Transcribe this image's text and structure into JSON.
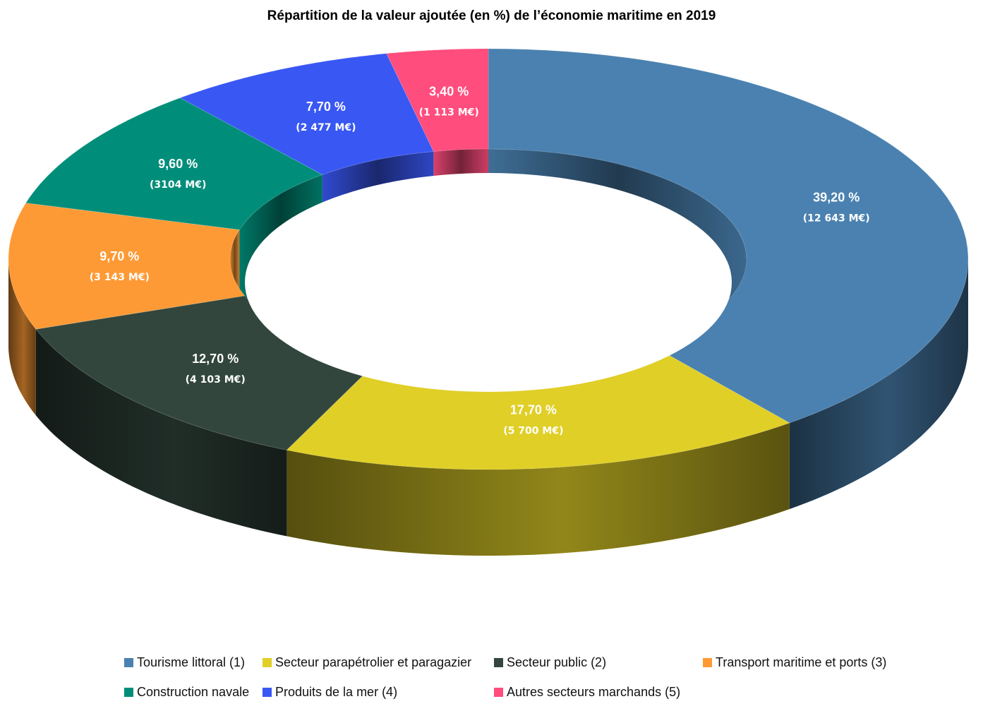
{
  "chart_data": {
    "type": "pie",
    "style": "donut-3d",
    "title": "Répartition de la valeur ajoutée (en %) de l’économie maritime en 2019",
    "legend_position": "bottom",
    "slices": [
      {
        "name": "Tourisme littoral (1)",
        "value": 39.2,
        "label": "39,20 %",
        "amount": "(12 643 M€)",
        "color": "#4A81B0"
      },
      {
        "name": "Secteur parapétrolier et paragazier",
        "value": 17.7,
        "label": "17,70 %",
        "amount": "(5 700 M€)",
        "color": "#E0CF27"
      },
      {
        "name": "Secteur public (2)",
        "value": 12.7,
        "label": "12,70 %",
        "amount": "(4 103 M€)",
        "color": "#32463D"
      },
      {
        "name": "Transport maritime et ports (3)",
        "value": 9.7,
        "label": "9,70 %",
        "amount": "(3 143 M€)",
        "color": "#FE9A35"
      },
      {
        "name": "Construction navale",
        "value": 9.6,
        "label": "9,60 %",
        "amount": "(3104 M€)",
        "color": "#008E7A"
      },
      {
        "name": "Produits de la mer (4)",
        "value": 7.7,
        "label": "7,70 %",
        "amount": "(2 477 M€)",
        "color": "#3957F3"
      },
      {
        "name": "Autres secteurs marchands (5)",
        "value": 3.4,
        "label": "3,40 %",
        "amount": "(1 113 M€)",
        "color": "#FF4D7D"
      }
    ]
  }
}
